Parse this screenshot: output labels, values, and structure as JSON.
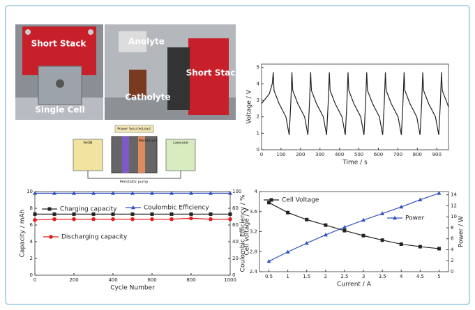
{
  "photos": {
    "labels": [
      "Short Stack",
      "Single Cell",
      "Anolyte",
      "Catholyte",
      "Short Stack"
    ]
  },
  "schematic": {
    "labels": [
      "FeDB",
      "Lawsone",
      "Power Source/Load",
      "Membrane",
      "Peristaltic pump"
    ]
  },
  "chart_data": [
    {
      "type": "line",
      "xlabel": "Time / s",
      "ylabel": "Voltage / V",
      "x": [
        0,
        40,
        55,
        60,
        64,
        90,
        125,
        142,
        150,
        156,
        160,
        186,
        221,
        238,
        246,
        252,
        256,
        282,
        317,
        334,
        342,
        348,
        352,
        378,
        413,
        430,
        438,
        444,
        448,
        474,
        509,
        526,
        534,
        540,
        544,
        570,
        605,
        622,
        630,
        636,
        640,
        666,
        701,
        718,
        726,
        732,
        736,
        762,
        797,
        814,
        822,
        828,
        832,
        858,
        893,
        910,
        918,
        924,
        928,
        954,
        960
      ],
      "series": [
        {
          "color": "#222222",
          "values": [
            2.8,
            3.4,
            4.0,
            4.7,
            3.6,
            2.8,
            2.0,
            0.9,
            2.8,
            4.7,
            3.6,
            2.8,
            2.0,
            0.9,
            2.8,
            4.7,
            3.6,
            2.8,
            2.0,
            0.9,
            2.8,
            4.7,
            3.6,
            2.8,
            2.0,
            0.9,
            2.8,
            4.7,
            3.6,
            2.8,
            2.0,
            0.9,
            2.8,
            4.7,
            3.6,
            2.8,
            2.0,
            0.9,
            2.8,
            4.7,
            3.6,
            2.8,
            2.0,
            0.9,
            2.8,
            4.7,
            3.6,
            2.8,
            2.0,
            0.9,
            2.8,
            4.7,
            3.6,
            2.8,
            2.0,
            0.9,
            2.8,
            4.7,
            3.6,
            2.8,
            2.6
          ]
        }
      ],
      "xlim": [
        0,
        960
      ],
      "xticks": [
        0,
        100,
        200,
        300,
        400,
        500,
        600,
        700,
        800,
        900
      ],
      "ylim": [
        0,
        5.2
      ],
      "yticks": [
        0,
        1,
        2,
        3,
        4,
        5
      ]
    },
    {
      "type": "line",
      "xlabel": "Cycle Number",
      "ylabel": "Capacity / mAh",
      "y2label": "Coulombic Efficiency / %",
      "x": [
        0,
        100,
        200,
        300,
        400,
        500,
        600,
        700,
        800,
        900,
        1000
      ],
      "series": [
        {
          "name": "Charging capacity",
          "color": "#222222",
          "marker": "square",
          "values": [
            7.3,
            7.3,
            7.3,
            7.3,
            7.3,
            7.3,
            7.3,
            7.3,
            7.3,
            7.3,
            7.3
          ]
        },
        {
          "name": "Discharging capacity",
          "color": "#e02020",
          "marker": "circle",
          "values": [
            6.6,
            6.7,
            6.7,
            6.7,
            6.7,
            6.7,
            6.7,
            6.7,
            6.8,
            6.7,
            6.7
          ]
        },
        {
          "name": "Coulombic Efficiency",
          "color": "#3050c0",
          "marker": "triangle",
          "axis": "y2",
          "values": [
            98,
            98,
            98,
            98,
            98,
            98,
            98,
            98,
            98,
            98,
            98
          ]
        }
      ],
      "xlim": [
        0,
        1000
      ],
      "xticks": [
        0,
        200,
        400,
        600,
        800,
        1000
      ],
      "ylim": [
        0,
        10
      ],
      "yticks": [
        0,
        2,
        4,
        6,
        8,
        10
      ],
      "y2lim": [
        0,
        100
      ],
      "y2ticks": [
        0,
        20,
        40,
        60,
        80,
        100
      ]
    },
    {
      "type": "line",
      "xlabel": "Current / A",
      "ylabel": "Cell voltage / V",
      "y2label": "Power / W",
      "x": [
        0.5,
        1,
        1.5,
        2,
        2.5,
        3,
        3.5,
        4,
        4.5,
        5
      ],
      "series": [
        {
          "name": "Cell Voltage",
          "color": "#222222",
          "marker": "square",
          "values": [
            3.78,
            3.58,
            3.44,
            3.33,
            3.22,
            3.12,
            3.03,
            2.95,
            2.9,
            2.86
          ]
        },
        {
          "name": "Power",
          "color": "#3050c0",
          "marker": "triangle",
          "axis": "y2",
          "values": [
            1.9,
            3.6,
            5.2,
            6.7,
            8.1,
            9.4,
            10.6,
            11.8,
            13.1,
            14.3
          ]
        }
      ],
      "xlim": [
        0.25,
        5.25
      ],
      "xticks": [
        0.5,
        1,
        1.5,
        2,
        2.5,
        3,
        3.5,
        4,
        4.5,
        5
      ],
      "ylim": [
        2.4,
        4
      ],
      "yticks": [
        2.4,
        2.8,
        3.2,
        3.6,
        4
      ],
      "y2lim": [
        0,
        14.6
      ],
      "y2ticks": [
        0,
        2,
        4,
        6,
        8,
        10,
        12,
        14
      ]
    }
  ]
}
